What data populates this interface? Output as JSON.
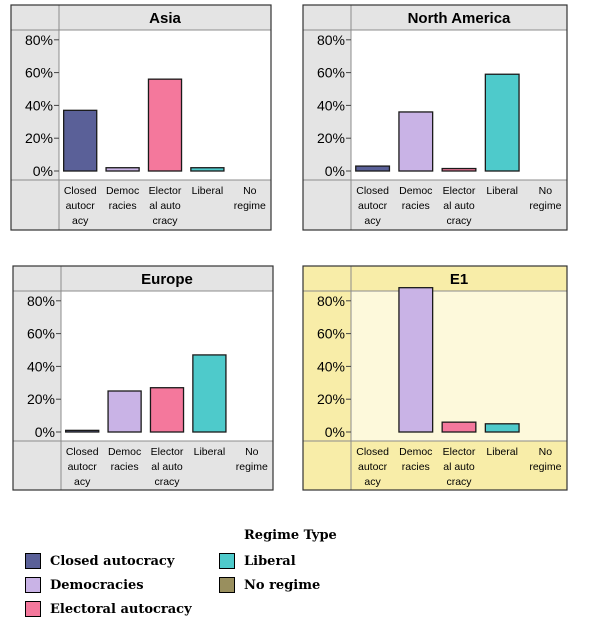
{
  "colors": {
    "Closed autocracy": "#5a6098",
    "Democracies": "#c9b3e6",
    "Electoral autocracy": "#f4789c",
    "Liberal": "#4ecacb",
    "No regime": "#998f5e"
  },
  "chart_data": [
    {
      "type": "bar",
      "title": "Asia",
      "highlight": false,
      "categories": [
        "Closed autocracy",
        "Democracies",
        "Electoral autocracy",
        "Liberal",
        "No regime"
      ],
      "category_lines": [
        [
          "Closed",
          "autocr",
          "acy"
        ],
        [
          "Democ",
          "racies"
        ],
        [
          "Elector",
          "al auto",
          "cracy"
        ],
        [
          "Liberal"
        ],
        [
          "No",
          "regime"
        ]
      ],
      "values": [
        37,
        2,
        56,
        2,
        0
      ],
      "yticks": [
        0,
        20,
        40,
        60,
        80
      ],
      "ytick_labels": [
        "0%",
        "20%",
        "40%",
        "60%",
        "80%"
      ],
      "ylim": [
        0,
        90
      ]
    },
    {
      "type": "bar",
      "title": "North America",
      "highlight": false,
      "categories": [
        "Closed autocracy",
        "Democracies",
        "Electoral autocracy",
        "Liberal",
        "No regime"
      ],
      "category_lines": [
        [
          "Closed",
          "autocr",
          "acy"
        ],
        [
          "Democ",
          "racies"
        ],
        [
          "Elector",
          "al auto",
          "cracy"
        ],
        [
          "Liberal"
        ],
        [
          "No",
          "regime"
        ]
      ],
      "values": [
        3,
        36,
        1.5,
        59,
        0
      ],
      "yticks": [
        0,
        20,
        40,
        60,
        80
      ],
      "ytick_labels": [
        "0%",
        "20%",
        "40%",
        "60%",
        "80%"
      ],
      "ylim": [
        0,
        90
      ]
    },
    {
      "type": "bar",
      "title": "Europe",
      "highlight": false,
      "categories": [
        "Closed autocracy",
        "Democracies",
        "Electoral autocracy",
        "Liberal",
        "No regime"
      ],
      "category_lines": [
        [
          "Closed",
          "autocr",
          "acy"
        ],
        [
          "Democ",
          "racies"
        ],
        [
          "Elector",
          "al auto",
          "cracy"
        ],
        [
          "Liberal"
        ],
        [
          "No",
          "regime"
        ]
      ],
      "values": [
        1,
        25,
        27,
        47,
        0
      ],
      "yticks": [
        0,
        20,
        40,
        60,
        80
      ],
      "ytick_labels": [
        "0%",
        "20%",
        "40%",
        "60%",
        "80%"
      ],
      "ylim": [
        0,
        90
      ]
    },
    {
      "type": "bar",
      "title": "E1",
      "highlight": true,
      "categories": [
        "Closed autocracy",
        "Democracies",
        "Electoral autocracy",
        "Liberal",
        "No regime"
      ],
      "category_lines": [
        [
          "Closed",
          "autocr",
          "acy"
        ],
        [
          "Democ",
          "racies"
        ],
        [
          "Elector",
          "al auto",
          "cracy"
        ],
        [
          "Liberal"
        ],
        [
          "No",
          "regime"
        ]
      ],
      "values": [
        0,
        88,
        6,
        5,
        0
      ],
      "yticks": [
        0,
        20,
        40,
        60,
        80
      ],
      "ytick_labels": [
        "0%",
        "20%",
        "40%",
        "60%",
        "80%"
      ],
      "ylim": [
        0,
        90
      ]
    }
  ],
  "legend": {
    "title": "Regime Type",
    "items": [
      "Closed autocracy",
      "Democracies",
      "Electoral autocracy",
      "Liberal",
      "No regime"
    ]
  }
}
